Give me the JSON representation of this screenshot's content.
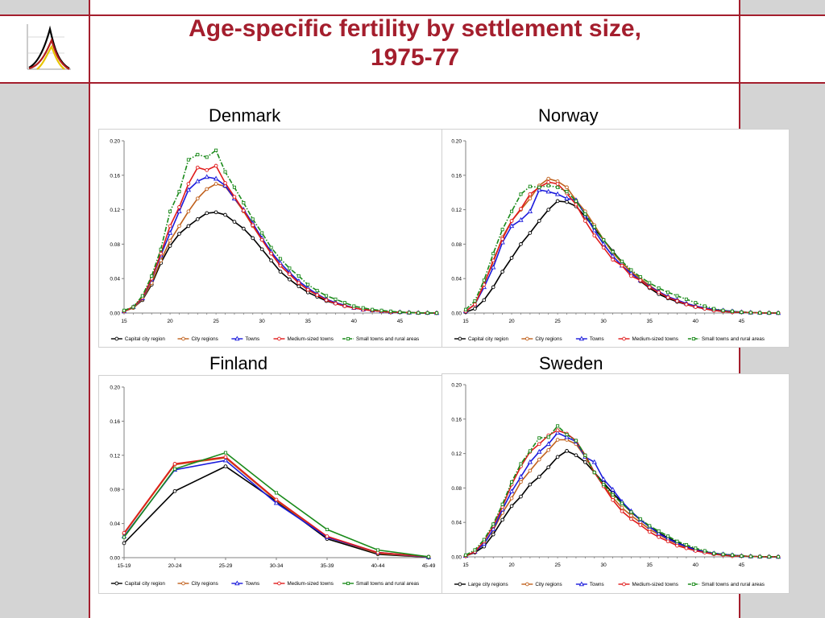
{
  "title": {
    "line1": "Age-specific fertility by settlement size,",
    "line2": "1975-77"
  },
  "colors": {
    "brand": "#a41e2d",
    "series": [
      "#000000",
      "#c0601c",
      "#1a1adc",
      "#e01b1b",
      "#1a8a1a"
    ]
  },
  "logo_icon": "fertility-curves-logo",
  "chart_data": [
    {
      "id": "denmark",
      "title": "Denmark",
      "type": "line",
      "ylim": [
        0,
        0.2
      ],
      "yticks": [
        "0.00",
        "0.04",
        "0.08",
        "0.12",
        "0.16",
        "0.20"
      ],
      "xlim": [
        15,
        49
      ],
      "xticks": [
        15,
        20,
        25,
        30,
        35,
        40,
        45
      ],
      "x": [
        15,
        16,
        17,
        18,
        19,
        20,
        21,
        22,
        23,
        24,
        25,
        26,
        27,
        28,
        29,
        30,
        31,
        32,
        33,
        34,
        35,
        36,
        37,
        38,
        39,
        40,
        41,
        42,
        43,
        44,
        45,
        46,
        47,
        48,
        49
      ],
      "grid": false,
      "legend": "bottom",
      "series": [
        {
          "name": "Capital city region",
          "style": "solid",
          "values": [
            0.002,
            0.006,
            0.015,
            0.033,
            0.058,
            0.078,
            0.092,
            0.101,
            0.109,
            0.116,
            0.117,
            0.114,
            0.106,
            0.098,
            0.087,
            0.074,
            0.061,
            0.048,
            0.039,
            0.031,
            0.024,
            0.019,
            0.014,
            0.011,
            0.008,
            0.006,
            0.004,
            0.003,
            0.002,
            0.001,
            0.001,
            0.0005,
            0.0002,
            0.0001,
            0.0
          ]
        },
        {
          "name": "City regions",
          "style": "solid",
          "values": [
            0.002,
            0.006,
            0.016,
            0.035,
            0.061,
            0.084,
            0.101,
            0.118,
            0.133,
            0.144,
            0.15,
            0.147,
            0.133,
            0.118,
            0.101,
            0.085,
            0.07,
            0.055,
            0.045,
            0.035,
            0.027,
            0.021,
            0.016,
            0.012,
            0.009,
            0.006,
            0.004,
            0.003,
            0.002,
            0.001,
            0.001,
            0.0005,
            0.0002,
            0.0001,
            0.0
          ]
        },
        {
          "name": "Towns",
          "style": "solid",
          "values": [
            0.002,
            0.007,
            0.017,
            0.039,
            0.067,
            0.093,
            0.118,
            0.143,
            0.153,
            0.158,
            0.156,
            0.148,
            0.133,
            0.12,
            0.104,
            0.087,
            0.071,
            0.058,
            0.047,
            0.037,
            0.029,
            0.022,
            0.016,
            0.012,
            0.009,
            0.006,
            0.004,
            0.003,
            0.002,
            0.001,
            0.001,
            0.0005,
            0.0002,
            0.0001,
            0.0
          ]
        },
        {
          "name": "Medium-sized towns",
          "style": "solid",
          "values": [
            0.002,
            0.007,
            0.018,
            0.04,
            0.069,
            0.101,
            0.123,
            0.15,
            0.169,
            0.166,
            0.171,
            0.151,
            0.135,
            0.119,
            0.102,
            0.085,
            0.069,
            0.055,
            0.045,
            0.035,
            0.027,
            0.021,
            0.015,
            0.011,
            0.008,
            0.006,
            0.004,
            0.003,
            0.002,
            0.001,
            0.001,
            0.0005,
            0.0002,
            0.0001,
            0.0
          ]
        },
        {
          "name": "Small towns and rural areas",
          "style": "dashdot",
          "values": [
            0.003,
            0.007,
            0.02,
            0.043,
            0.074,
            0.118,
            0.141,
            0.178,
            0.184,
            0.181,
            0.189,
            0.164,
            0.146,
            0.128,
            0.109,
            0.093,
            0.076,
            0.063,
            0.052,
            0.043,
            0.033,
            0.026,
            0.02,
            0.016,
            0.012,
            0.008,
            0.006,
            0.004,
            0.003,
            0.002,
            0.001,
            0.0005,
            0.0002,
            0.0001,
            0.0
          ]
        }
      ]
    },
    {
      "id": "norway",
      "title": "Norway",
      "type": "line",
      "ylim": [
        0,
        0.2
      ],
      "yticks": [
        "0.00",
        "0.04",
        "0.08",
        "0.12",
        "0.16",
        "0.20"
      ],
      "xlim": [
        15,
        49
      ],
      "xticks": [
        15,
        20,
        25,
        30,
        35,
        40,
        45
      ],
      "x": [
        15,
        16,
        17,
        18,
        19,
        20,
        21,
        22,
        23,
        24,
        25,
        26,
        27,
        28,
        29,
        30,
        31,
        32,
        33,
        34,
        35,
        36,
        37,
        38,
        39,
        40,
        41,
        42,
        43,
        44,
        45,
        46,
        47,
        48,
        49
      ],
      "grid": false,
      "legend": "bottom",
      "series": [
        {
          "name": "Capital city region",
          "style": "solid",
          "values": [
            0.001,
            0.005,
            0.015,
            0.03,
            0.048,
            0.064,
            0.08,
            0.093,
            0.107,
            0.12,
            0.13,
            0.129,
            0.124,
            0.112,
            0.098,
            0.085,
            0.072,
            0.059,
            0.047,
            0.037,
            0.029,
            0.022,
            0.017,
            0.013,
            0.01,
            0.007,
            0.005,
            0.003,
            0.002,
            0.001,
            0.001,
            0.0005,
            0.0002,
            0.0001,
            0.0
          ]
        },
        {
          "name": "City regions",
          "style": "solid",
          "values": [
            0.002,
            0.01,
            0.034,
            0.059,
            0.088,
            0.107,
            0.12,
            0.133,
            0.148,
            0.156,
            0.153,
            0.146,
            0.131,
            0.118,
            0.102,
            0.085,
            0.07,
            0.058,
            0.048,
            0.04,
            0.032,
            0.025,
            0.019,
            0.015,
            0.011,
            0.008,
            0.006,
            0.004,
            0.003,
            0.002,
            0.001,
            0.0005,
            0.0002,
            0.0001,
            0.0
          ]
        },
        {
          "name": "Towns",
          "style": "solid",
          "values": [
            0.002,
            0.01,
            0.03,
            0.053,
            0.082,
            0.101,
            0.108,
            0.118,
            0.143,
            0.141,
            0.138,
            0.133,
            0.131,
            0.114,
            0.096,
            0.08,
            0.066,
            0.055,
            0.046,
            0.038,
            0.031,
            0.025,
            0.019,
            0.015,
            0.011,
            0.008,
            0.006,
            0.004,
            0.003,
            0.002,
            0.001,
            0.0005,
            0.0002,
            0.0001,
            0.0
          ]
        },
        {
          "name": "Medium-sized towns",
          "style": "solid",
          "values": [
            0.002,
            0.01,
            0.033,
            0.061,
            0.086,
            0.107,
            0.121,
            0.138,
            0.146,
            0.152,
            0.15,
            0.139,
            0.126,
            0.107,
            0.09,
            0.076,
            0.062,
            0.055,
            0.043,
            0.038,
            0.03,
            0.024,
            0.018,
            0.014,
            0.01,
            0.007,
            0.005,
            0.003,
            0.002,
            0.001,
            0.001,
            0.0005,
            0.0002,
            0.0001,
            0.0
          ]
        },
        {
          "name": "Small towns and rural areas",
          "style": "dashdot",
          "values": [
            0.004,
            0.014,
            0.038,
            0.069,
            0.097,
            0.118,
            0.138,
            0.147,
            0.146,
            0.148,
            0.146,
            0.141,
            0.13,
            0.115,
            0.1,
            0.085,
            0.071,
            0.06,
            0.05,
            0.042,
            0.035,
            0.029,
            0.024,
            0.02,
            0.016,
            0.012,
            0.008,
            0.005,
            0.003,
            0.002,
            0.001,
            0.0005,
            0.0002,
            0.0001,
            0.0
          ]
        }
      ]
    },
    {
      "id": "finland",
      "title": "Finland",
      "type": "line",
      "ylim": [
        0,
        0.2
      ],
      "yticks": [
        "0.00",
        "0.04",
        "0.08",
        "0.12",
        "0.16",
        "0.20"
      ],
      "categories": [
        "15-19",
        "20-24",
        "25-29",
        "30-34",
        "35-39",
        "40-44",
        "45-49"
      ],
      "grid": false,
      "legend": "bottom",
      "series": [
        {
          "name": "Capital city region",
          "style": "solid",
          "values": [
            0.017,
            0.078,
            0.107,
            0.066,
            0.022,
            0.004,
            0.0005
          ]
        },
        {
          "name": "City regions",
          "style": "solid",
          "values": [
            0.028,
            0.109,
            0.117,
            0.067,
            0.024,
            0.005,
            0.0005
          ]
        },
        {
          "name": "Towns",
          "style": "solid",
          "values": [
            0.025,
            0.103,
            0.114,
            0.064,
            0.024,
            0.006,
            0.0005
          ]
        },
        {
          "name": "Medium-sized towns",
          "style": "solid",
          "values": [
            0.029,
            0.11,
            0.118,
            0.068,
            0.025,
            0.006,
            0.001
          ]
        },
        {
          "name": "Small towns and rural areas",
          "style": "solid",
          "values": [
            0.024,
            0.104,
            0.123,
            0.076,
            0.033,
            0.009,
            0.001
          ]
        }
      ]
    },
    {
      "id": "sweden",
      "title": "Sweden",
      "type": "line",
      "ylim": [
        0,
        0.2
      ],
      "yticks": [
        "0.00",
        "0.04",
        "0.08",
        "0.12",
        "0.16",
        "0.20"
      ],
      "xlim": [
        15,
        49
      ],
      "xticks": [
        15,
        20,
        25,
        30,
        35,
        40,
        45
      ],
      "x": [
        15,
        16,
        17,
        18,
        19,
        20,
        21,
        22,
        23,
        24,
        25,
        26,
        27,
        28,
        29,
        30,
        31,
        32,
        33,
        34,
        35,
        36,
        37,
        38,
        39,
        40,
        41,
        42,
        43,
        44,
        45,
        46,
        47,
        48,
        49
      ],
      "grid": false,
      "legend": "bottom",
      "series": [
        {
          "name": "Large city regions",
          "style": "solid",
          "values": [
            0.001,
            0.005,
            0.012,
            0.026,
            0.043,
            0.059,
            0.07,
            0.084,
            0.093,
            0.104,
            0.116,
            0.123,
            0.118,
            0.11,
            0.098,
            0.086,
            0.074,
            0.063,
            0.052,
            0.043,
            0.035,
            0.028,
            0.022,
            0.017,
            0.012,
            0.009,
            0.006,
            0.004,
            0.003,
            0.002,
            0.001,
            0.0005,
            0.0002,
            0.0001,
            0.0
          ]
        },
        {
          "name": "City regions",
          "style": "solid",
          "values": [
            0.001,
            0.006,
            0.015,
            0.031,
            0.051,
            0.068,
            0.087,
            0.1,
            0.113,
            0.124,
            0.136,
            0.136,
            0.131,
            0.116,
            0.098,
            0.083,
            0.069,
            0.057,
            0.048,
            0.04,
            0.032,
            0.026,
            0.02,
            0.015,
            0.011,
            0.008,
            0.006,
            0.004,
            0.003,
            0.002,
            0.001,
            0.0005,
            0.0002,
            0.0001,
            0.0
          ]
        },
        {
          "name": "Towns",
          "style": "solid",
          "values": [
            0.001,
            0.006,
            0.015,
            0.032,
            0.055,
            0.076,
            0.093,
            0.11,
            0.122,
            0.131,
            0.144,
            0.139,
            0.134,
            0.116,
            0.11,
            0.09,
            0.078,
            0.064,
            0.053,
            0.043,
            0.035,
            0.027,
            0.021,
            0.016,
            0.012,
            0.008,
            0.006,
            0.004,
            0.003,
            0.002,
            0.001,
            0.0005,
            0.0002,
            0.0001,
            0.0
          ]
        },
        {
          "name": "Medium-sized towns",
          "style": "solid",
          "values": [
            0.001,
            0.006,
            0.018,
            0.036,
            0.058,
            0.084,
            0.105,
            0.122,
            0.131,
            0.141,
            0.147,
            0.143,
            0.135,
            0.118,
            0.098,
            0.082,
            0.066,
            0.053,
            0.044,
            0.037,
            0.029,
            0.023,
            0.018,
            0.013,
            0.01,
            0.007,
            0.005,
            0.003,
            0.002,
            0.001,
            0.001,
            0.0005,
            0.0002,
            0.0001,
            0.0
          ]
        },
        {
          "name": "Small towns and rural areas",
          "style": "dashdot",
          "values": [
            0.002,
            0.008,
            0.02,
            0.038,
            0.061,
            0.087,
            0.108,
            0.123,
            0.138,
            0.139,
            0.152,
            0.142,
            0.135,
            0.118,
            0.098,
            0.084,
            0.072,
            0.062,
            0.052,
            0.044,
            0.036,
            0.03,
            0.024,
            0.018,
            0.014,
            0.01,
            0.007,
            0.004,
            0.003,
            0.002,
            0.001,
            0.0005,
            0.0002,
            0.0001,
            0.0
          ]
        }
      ]
    }
  ]
}
